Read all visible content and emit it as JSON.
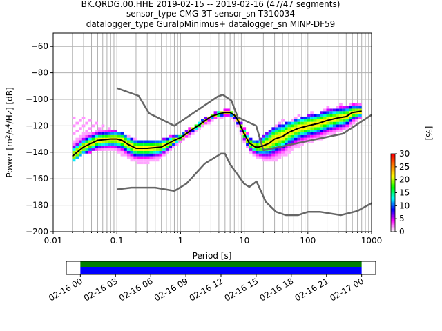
{
  "title": {
    "line1": "BK.QRDG.00.HHE   2019-02-15 -- 2019-02-16  (47/47 segments)",
    "line2": "sensor_type CMG-3T sensor_sn T310034",
    "line3": "datalogger_type GuralpMinimus+ datalogger_sn MINP-DF59"
  },
  "chart_data": {
    "type": "heatmap",
    "xlabel": "Period [s]",
    "ylabel": "Power [m²/s⁴/Hz] [dB]",
    "xscale": "log",
    "xlim": [
      0.01,
      1000
    ],
    "ylim": [
      -200,
      -50
    ],
    "xticks": [
      {
        "v": 0.01,
        "label": "0.01"
      },
      {
        "v": 0.1,
        "label": "0.1"
      },
      {
        "v": 1,
        "label": "1"
      },
      {
        "v": 10,
        "label": "10"
      },
      {
        "v": 100,
        "label": "100"
      },
      {
        "v": 1000,
        "label": "1000"
      }
    ],
    "yticks": [
      -60,
      -80,
      -100,
      -120,
      -140,
      -160,
      -180,
      -200
    ],
    "grid": true,
    "colorbar": {
      "label": "[%]",
      "min": 0,
      "max": 30,
      "ticks": [
        0,
        5,
        10,
        15,
        20,
        25,
        30
      ],
      "colors": [
        "#ffffff",
        "#ff00ff",
        "#0000ff",
        "#00ffff",
        "#00ff00",
        "#ffff00",
        "#ff7f00",
        "#ff0000"
      ]
    },
    "nhnm": {
      "name": "NHNM",
      "color": "#666666",
      "x": [
        0.1,
        0.22,
        0.32,
        0.8,
        3.8,
        4.6,
        6.3,
        7.9,
        15.4,
        20,
        354.8,
        10000
      ],
      "y": [
        -91.5,
        -97.4,
        -110.5,
        -120,
        -98,
        -96.5,
        -101,
        -113.5,
        -120,
        -138.5,
        -126,
        -80.1
      ]
    },
    "nlnm": {
      "name": "NLNM",
      "color": "#666666",
      "x": [
        0.1,
        0.17,
        0.4,
        0.8,
        1.24,
        2.4,
        4.3,
        5,
        6,
        10,
        12,
        15.6,
        21.9,
        31.6,
        45,
        70,
        101,
        154,
        328,
        600,
        10000
      ],
      "y": [
        -168,
        -166.7,
        -166.7,
        -169.2,
        -163.7,
        -148.6,
        -141.1,
        -141.1,
        -149,
        -163.8,
        -166.2,
        -162.1,
        -177.5,
        -185,
        -187.5,
        -187.5,
        -185,
        -185,
        -187.5,
        -184.4,
        -151.5
      ]
    },
    "mode": {
      "name": "mode",
      "color": "#000000",
      "x": [
        0.02,
        0.025,
        0.03,
        0.05,
        0.08,
        0.1,
        0.12,
        0.15,
        0.2,
        0.3,
        0.5,
        0.8,
        1,
        1.5,
        2,
        3,
        4,
        5,
        6,
        7,
        8,
        10,
        12,
        15,
        17,
        20,
        25,
        30,
        40,
        50,
        70,
        100,
        150,
        200,
        300,
        400,
        500,
        700
      ],
      "y": [
        -143,
        -139,
        -136,
        -131,
        -130,
        -130,
        -131,
        -134,
        -137,
        -137,
        -136,
        -131,
        -129,
        -123,
        -119,
        -113,
        -111,
        -110,
        -110,
        -112,
        -116,
        -126,
        -133,
        -136,
        -136,
        -135,
        -133,
        -130,
        -128,
        -125,
        -122,
        -120,
        -118,
        -116,
        -114,
        -113,
        -110,
        -109
      ]
    },
    "pdf_band": {
      "x": [
        0.02,
        0.025,
        0.03,
        0.05,
        0.08,
        0.1,
        0.12,
        0.15,
        0.2,
        0.3,
        0.5,
        0.8,
        1,
        1.5,
        2,
        3,
        4,
        5,
        6,
        7,
        8,
        10,
        12,
        15,
        17,
        20,
        25,
        30,
        40,
        50,
        70,
        100,
        150,
        200,
        300,
        400,
        500,
        700
      ],
      "lo": [
        -146,
        -142,
        -139,
        -137,
        -137,
        -138,
        -140,
        -143,
        -146,
        -147,
        -143,
        -135,
        -131,
        -125,
        -121,
        -115,
        -113,
        -112,
        -112,
        -114,
        -119,
        -130,
        -138,
        -142,
        -143,
        -145,
        -146,
        -145,
        -142,
        -139,
        -135,
        -131,
        -129,
        -126,
        -123,
        -121,
        -117,
        -113
      ],
      "hi": [
        -131,
        -128,
        -125,
        -124,
        -124,
        -124,
        -125,
        -128,
        -131,
        -132,
        -130,
        -127,
        -126,
        -121,
        -117,
        -111,
        -109,
        -108,
        -108,
        -110,
        -113,
        -121,
        -128,
        -131,
        -130,
        -128,
        -124,
        -121,
        -119,
        -117,
        -115,
        -112,
        -110,
        -108,
        -106,
        -105,
        -104,
        -104
      ],
      "outlier_hi": [
        -114,
        -113,
        -113,
        -118,
        -122,
        -122,
        -123,
        -126,
        -129,
        -131,
        -130,
        -127,
        -126,
        -121,
        -117,
        -111,
        -109,
        -108,
        -108,
        -110,
        -113,
        -121,
        -128,
        -131,
        -128,
        -124,
        -121,
        -118,
        -116,
        -114,
        -112,
        -110,
        -108,
        -106,
        -104,
        -104,
        -103,
        -103
      ]
    },
    "timeline": {
      "tick_labels": [
        "02-16 00",
        "02-16 03",
        "02-16 06",
        "02-16 09",
        "02-16 12",
        "02-16 15",
        "02-16 18",
        "02-16 21",
        "02-17 00"
      ],
      "tick_hours": [
        0,
        3,
        6,
        9,
        12,
        15,
        18,
        21,
        24
      ],
      "range_hours": [
        -1.2,
        25.2
      ],
      "data_hours": [
        0,
        24
      ],
      "colors": {
        "available": "#008000",
        "used": "#0000ff"
      }
    }
  }
}
